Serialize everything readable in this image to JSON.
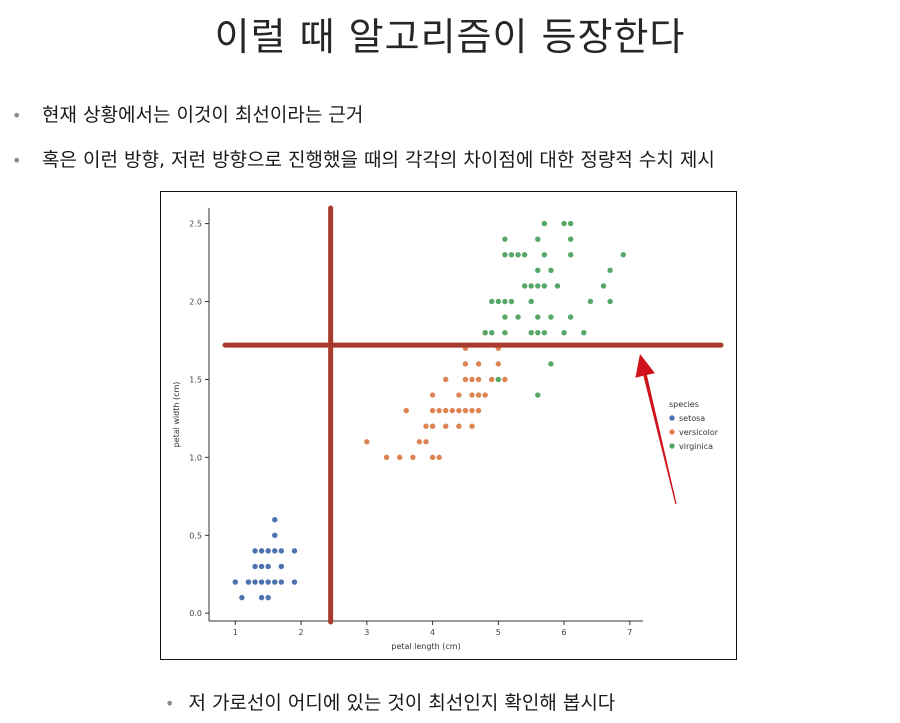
{
  "title": "이럴 때 알고리즘이 등장한다",
  "bullets": [
    "현재 상황에서는 이것이 최선이라는 근거",
    "혹은 이런 방향, 저런 방향으로 진행했을 때의 각각의 차이점에 대한 정량적 수치 제시"
  ],
  "bottom_bullet": "저 가로선이 어디에 있는 것이 최선인지 확인해 봅시다",
  "colors": {
    "setosa": "#4c72b0",
    "versicolor": "#dd8452",
    "virginica": "#55a868",
    "annotation": "#a83a2e",
    "arrow": "#d0121b"
  },
  "chart_data": {
    "type": "scatter",
    "xlabel": "petal length (cm)",
    "ylabel": "petal width (cm)",
    "xlim": [
      0.6,
      7.2
    ],
    "ylim": [
      -0.05,
      2.6
    ],
    "xticks": [
      1,
      2,
      3,
      4,
      5,
      6,
      7
    ],
    "yticks": [
      0.0,
      0.5,
      1.0,
      1.5,
      2.0,
      2.5
    ],
    "ytick_labels": [
      "0.0",
      "0.5",
      "1.0",
      "1.5",
      "2.0",
      "2.5"
    ],
    "legend": {
      "title": "species",
      "position": "right"
    },
    "series": [
      {
        "name": "setosa",
        "points": [
          [
            1.0,
            0.2
          ],
          [
            1.1,
            0.1
          ],
          [
            1.2,
            0.2
          ],
          [
            1.3,
            0.2
          ],
          [
            1.4,
            0.2
          ],
          [
            1.5,
            0.2
          ],
          [
            1.6,
            0.2
          ],
          [
            1.7,
            0.2
          ],
          [
            1.9,
            0.2
          ],
          [
            1.3,
            0.3
          ],
          [
            1.4,
            0.3
          ],
          [
            1.5,
            0.3
          ],
          [
            1.7,
            0.3
          ],
          [
            1.3,
            0.4
          ],
          [
            1.4,
            0.4
          ],
          [
            1.5,
            0.4
          ],
          [
            1.6,
            0.4
          ],
          [
            1.7,
            0.4
          ],
          [
            1.9,
            0.4
          ],
          [
            1.6,
            0.5
          ],
          [
            1.6,
            0.6
          ],
          [
            1.4,
            0.1
          ],
          [
            1.5,
            0.1
          ]
        ]
      },
      {
        "name": "versicolor",
        "points": [
          [
            3.0,
            1.1
          ],
          [
            3.3,
            1.0
          ],
          [
            3.5,
            1.0
          ],
          [
            3.7,
            1.0
          ],
          [
            4.0,
            1.0
          ],
          [
            4.1,
            1.0
          ],
          [
            3.8,
            1.1
          ],
          [
            3.9,
            1.1
          ],
          [
            3.9,
            1.2
          ],
          [
            4.0,
            1.2
          ],
          [
            4.2,
            1.2
          ],
          [
            4.4,
            1.2
          ],
          [
            4.6,
            1.2
          ],
          [
            3.6,
            1.3
          ],
          [
            4.0,
            1.3
          ],
          [
            4.1,
            1.3
          ],
          [
            4.2,
            1.3
          ],
          [
            4.3,
            1.3
          ],
          [
            4.4,
            1.3
          ],
          [
            4.5,
            1.3
          ],
          [
            4.6,
            1.3
          ],
          [
            4.7,
            1.3
          ],
          [
            4.0,
            1.4
          ],
          [
            4.4,
            1.4
          ],
          [
            4.6,
            1.4
          ],
          [
            4.7,
            1.4
          ],
          [
            4.8,
            1.4
          ],
          [
            4.2,
            1.5
          ],
          [
            4.5,
            1.5
          ],
          [
            4.6,
            1.5
          ],
          [
            4.7,
            1.5
          ],
          [
            4.9,
            1.5
          ],
          [
            5.1,
            1.5
          ],
          [
            4.5,
            1.6
          ],
          [
            4.7,
            1.6
          ],
          [
            5.0,
            1.6
          ],
          [
            4.5,
            1.7
          ],
          [
            5.0,
            1.7
          ],
          [
            4.8,
            1.8
          ]
        ]
      },
      {
        "name": "virginica",
        "points": [
          [
            5.0,
            1.5
          ],
          [
            5.6,
            1.4
          ],
          [
            5.8,
            1.6
          ],
          [
            4.8,
            1.8
          ],
          [
            4.9,
            1.8
          ],
          [
            5.1,
            1.8
          ],
          [
            5.5,
            1.8
          ],
          [
            5.6,
            1.8
          ],
          [
            5.7,
            1.8
          ],
          [
            6.0,
            1.8
          ],
          [
            6.3,
            1.8
          ],
          [
            5.1,
            1.9
          ],
          [
            5.3,
            1.9
          ],
          [
            5.6,
            1.9
          ],
          [
            5.8,
            1.9
          ],
          [
            6.1,
            1.9
          ],
          [
            4.9,
            2.0
          ],
          [
            5.0,
            2.0
          ],
          [
            5.1,
            2.0
          ],
          [
            5.2,
            2.0
          ],
          [
            5.5,
            2.0
          ],
          [
            6.4,
            2.0
          ],
          [
            6.7,
            2.0
          ],
          [
            5.4,
            2.1
          ],
          [
            5.5,
            2.1
          ],
          [
            5.6,
            2.1
          ],
          [
            5.7,
            2.1
          ],
          [
            5.9,
            2.1
          ],
          [
            6.6,
            2.1
          ],
          [
            5.6,
            2.2
          ],
          [
            5.8,
            2.2
          ],
          [
            6.7,
            2.2
          ],
          [
            5.1,
            2.3
          ],
          [
            5.2,
            2.3
          ],
          [
            5.3,
            2.3
          ],
          [
            5.4,
            2.3
          ],
          [
            5.7,
            2.3
          ],
          [
            6.1,
            2.3
          ],
          [
            6.9,
            2.3
          ],
          [
            5.1,
            2.4
          ],
          [
            5.6,
            2.4
          ],
          [
            6.1,
            2.4
          ],
          [
            5.7,
            2.5
          ],
          [
            6.0,
            2.5
          ],
          [
            6.1,
            2.5
          ]
        ]
      }
    ],
    "annotations": {
      "vertical_line_x": 2.45,
      "horizontal_line_y": 1.72
    }
  }
}
